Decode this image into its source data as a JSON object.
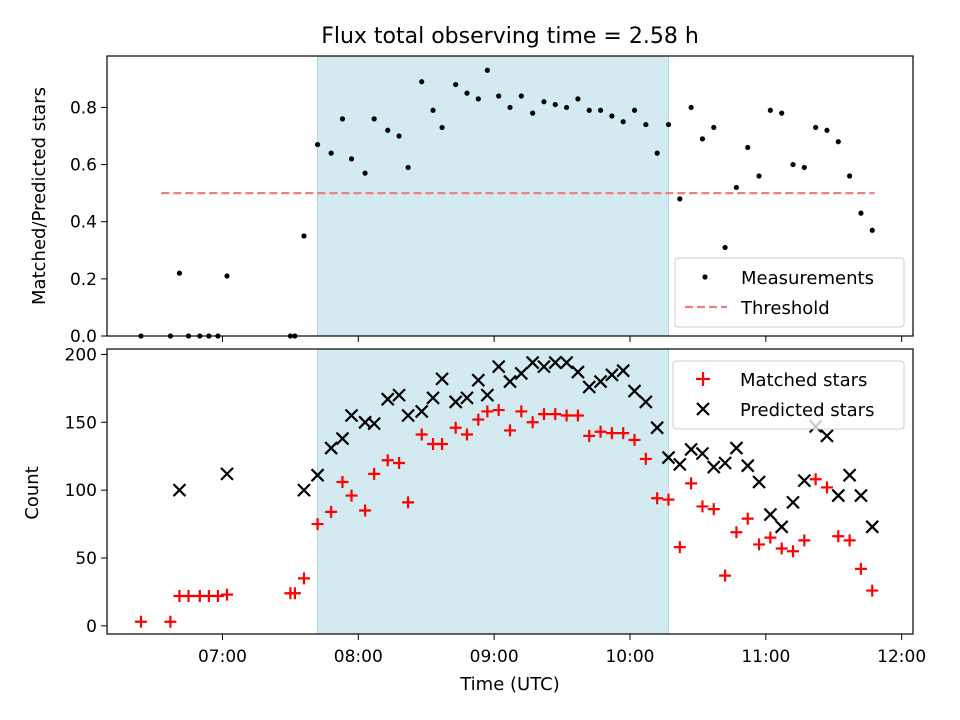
{
  "title": "Flux total observing time = 2.58 h",
  "chart_data": [
    {
      "type": "scatter",
      "ylabel": "Matched/Predicted stars",
      "xlabel": "",
      "x_unit": "time",
      "xlim": [
        "06:09",
        "12:05"
      ],
      "ylim": [
        0,
        0.98
      ],
      "yticks": [
        "0.0",
        "0.2",
        "0.4",
        "0.6",
        "0.8"
      ],
      "ytick_values": [
        0,
        0.2,
        0.4,
        0.6,
        0.8
      ],
      "shaded_interval": {
        "start": "07:42",
        "end": "10:17",
        "color": "#d3eaf0"
      },
      "threshold": {
        "name": "Threshold",
        "value": 0.5,
        "from": "06:33",
        "to": "11:48",
        "color": "#f08080"
      },
      "legend": {
        "placement": "lower right",
        "entries": [
          "Measurements",
          "Threshold"
        ]
      },
      "series": [
        {
          "name": "Measurements",
          "marker": "dot",
          "color": "#000000",
          "x": [
            "06:24",
            "06:37",
            "06:41",
            "06:45",
            "06:50",
            "06:54",
            "06:58",
            "07:02",
            "07:30",
            "07:32",
            "07:36",
            "07:42",
            "07:48",
            "07:53",
            "07:57",
            "08:03",
            "08:07",
            "08:13",
            "08:18",
            "08:22",
            "08:28",
            "08:33",
            "08:37",
            "08:43",
            "08:48",
            "08:53",
            "08:57",
            "09:02",
            "09:07",
            "09:12",
            "09:17",
            "09:22",
            "09:27",
            "09:32",
            "09:37",
            "09:42",
            "09:47",
            "09:52",
            "09:57",
            "10:02",
            "10:07",
            "10:12",
            "10:17",
            "10:22",
            "10:27",
            "10:32",
            "10:37",
            "10:42",
            "10:47",
            "10:52",
            "10:57",
            "11:02",
            "11:07",
            "11:12",
            "11:17",
            "11:22",
            "11:27",
            "11:32",
            "11:37",
            "11:42",
            "11:47"
          ],
          "y": [
            0,
            0,
            0.22,
            0,
            0,
            0,
            0,
            0.21,
            0,
            0,
            0.35,
            0.67,
            0.64,
            0.76,
            0.62,
            0.57,
            0.76,
            0.72,
            0.7,
            0.59,
            0.89,
            0.79,
            0.73,
            0.88,
            0.85,
            0.83,
            0.93,
            0.84,
            0.8,
            0.84,
            0.78,
            0.82,
            0.81,
            0.8,
            0.83,
            0.79,
            0.79,
            0.77,
            0.75,
            0.79,
            0.74,
            0.64,
            0.74,
            0.48,
            0.8,
            0.69,
            0.73,
            0.31,
            0.52,
            0.66,
            0.56,
            0.79,
            0.78,
            0.6,
            0.59,
            0.73,
            0.72,
            0.68,
            0.56,
            0.43,
            0.37
          ]
        }
      ]
    },
    {
      "type": "scatter",
      "ylabel": "Count",
      "xlabel": "Time (UTC)",
      "x_unit": "time",
      "xlim": [
        "06:09",
        "12:05"
      ],
      "ylim": [
        -6,
        204
      ],
      "yticks": [
        "0",
        "50",
        "100",
        "150",
        "200"
      ],
      "ytick_values": [
        0,
        50,
        100,
        150,
        200
      ],
      "xticks": [
        "07:00",
        "08:00",
        "09:00",
        "10:00",
        "11:00",
        "12:00"
      ],
      "shaded_interval": {
        "start": "07:42",
        "end": "10:17",
        "color": "#d3eaf0"
      },
      "legend": {
        "placement": "upper right",
        "entries": [
          "Matched stars",
          "Predicted stars"
        ]
      },
      "series": [
        {
          "name": "Matched stars",
          "marker": "plus",
          "color": "#ff0000",
          "x": [
            "06:24",
            "06:37",
            "06:41",
            "06:45",
            "06:50",
            "06:54",
            "06:58",
            "07:02",
            "07:30",
            "07:32",
            "07:36",
            "07:42",
            "07:48",
            "07:53",
            "07:57",
            "08:03",
            "08:07",
            "08:13",
            "08:18",
            "08:22",
            "08:28",
            "08:33",
            "08:37",
            "08:43",
            "08:48",
            "08:53",
            "08:57",
            "09:02",
            "09:07",
            "09:12",
            "09:17",
            "09:22",
            "09:27",
            "09:32",
            "09:37",
            "09:42",
            "09:47",
            "09:52",
            "09:57",
            "10:02",
            "10:07",
            "10:12",
            "10:17",
            "10:22",
            "10:27",
            "10:32",
            "10:37",
            "10:42",
            "10:47",
            "10:52",
            "10:57",
            "11:02",
            "11:07",
            "11:12",
            "11:17",
            "11:22",
            "11:27",
            "11:32",
            "11:37",
            "11:42",
            "11:47"
          ],
          "y": [
            3,
            3,
            22,
            22,
            22,
            22,
            22,
            23,
            24,
            24,
            35,
            75,
            84,
            106,
            96,
            85,
            112,
            122,
            120,
            91,
            141,
            134,
            134,
            146,
            141,
            152,
            158,
            159,
            144,
            158,
            150,
            156,
            156,
            155,
            155,
            140,
            143,
            142,
            142,
            137,
            123,
            94,
            93,
            58,
            105,
            88,
            86,
            37,
            69,
            79,
            60,
            65,
            57,
            55,
            63,
            108,
            102,
            66,
            63,
            42,
            26
          ]
        },
        {
          "name": "Predicted stars",
          "marker": "x",
          "color": "#000000",
          "x": [
            "06:41",
            "07:02",
            "07:36",
            "07:42",
            "07:48",
            "07:53",
            "07:57",
            "08:03",
            "08:07",
            "08:13",
            "08:18",
            "08:22",
            "08:28",
            "08:33",
            "08:37",
            "08:43",
            "08:48",
            "08:53",
            "08:57",
            "09:02",
            "09:07",
            "09:12",
            "09:17",
            "09:22",
            "09:27",
            "09:32",
            "09:37",
            "09:42",
            "09:47",
            "09:52",
            "09:57",
            "10:02",
            "10:07",
            "10:12",
            "10:17",
            "10:22",
            "10:27",
            "10:32",
            "10:37",
            "10:42",
            "10:47",
            "10:52",
            "10:57",
            "11:02",
            "11:07",
            "11:12",
            "11:17",
            "11:22",
            "11:27",
            "11:32",
            "11:37",
            "11:42",
            "11:47"
          ],
          "y": [
            100,
            112,
            100,
            111,
            131,
            138,
            155,
            150,
            149,
            167,
            170,
            155,
            158,
            168,
            182,
            165,
            168,
            181,
            170,
            191,
            180,
            186,
            194,
            191,
            194,
            194,
            187,
            176,
            180,
            185,
            188,
            173,
            165,
            146,
            124,
            119,
            130,
            127,
            117,
            120,
            131,
            118,
            106,
            82,
            73,
            91,
            107,
            147,
            140,
            96,
            111,
            96,
            73
          ]
        }
      ]
    }
  ]
}
